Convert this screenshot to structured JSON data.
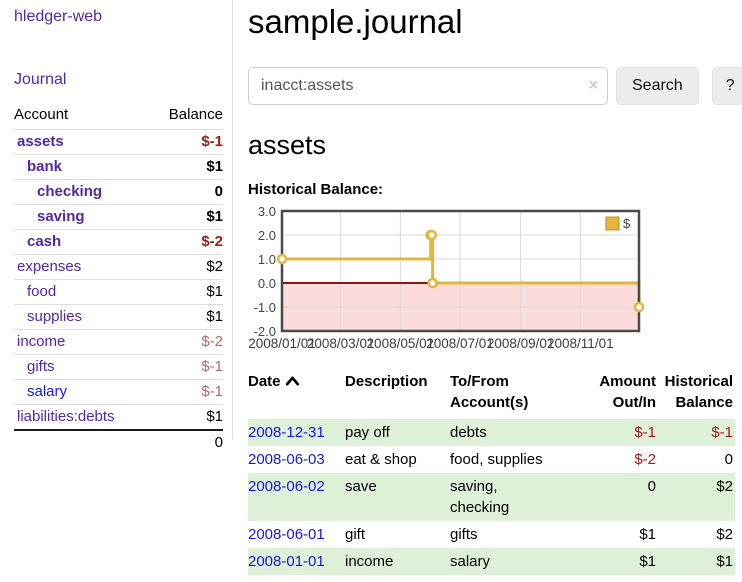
{
  "colors": {
    "link_purple": "#5229a3",
    "link_blue": "#1717d8",
    "neg_dark_red": "#9c1a18",
    "neg_light_red": "#b26a6a",
    "row_stripe_green": "#dff0d8",
    "chart_line_gold": "#e5b43a",
    "chart_negative_fill": "#fcdcda",
    "chart_zero_line": "#8c1512",
    "chart_grid": "#d9d9d9",
    "chart_border": "#4a4a4a"
  },
  "sidebar": {
    "app_title": "hledger-web",
    "nav_journal": "Journal",
    "accounts_table": {
      "headers": {
        "account": "Account",
        "balance": "Balance"
      },
      "rows": [
        {
          "name": "assets",
          "indent": 0,
          "bold": true,
          "balance": "$-1",
          "balance_class": "negb"
        },
        {
          "name": "bank",
          "indent": 1,
          "bold": true,
          "balance": "$1",
          "balance_class": "posb"
        },
        {
          "name": "checking",
          "indent": 2,
          "bold": true,
          "balance": "0",
          "balance_class": "posb"
        },
        {
          "name": "saving",
          "indent": 2,
          "bold": true,
          "balance": "$1",
          "balance_class": "posb"
        },
        {
          "name": "cash",
          "indent": 1,
          "bold": true,
          "balance": "$-2",
          "balance_class": "negb"
        },
        {
          "name": "expenses",
          "indent": 0,
          "bold": false,
          "balance": "$2",
          "balance_class": "pos"
        },
        {
          "name": "food",
          "indent": 1,
          "bold": false,
          "balance": "$1",
          "balance_class": "pos"
        },
        {
          "name": "supplies",
          "indent": 1,
          "bold": false,
          "balance": "$1",
          "balance_class": "pos"
        },
        {
          "name": "income",
          "indent": 0,
          "bold": false,
          "balance": "$-2",
          "balance_class": "negl"
        },
        {
          "name": "gifts",
          "indent": 1,
          "bold": false,
          "balance": "$-1",
          "balance_class": "negl"
        },
        {
          "name": "salary",
          "indent": 1,
          "bold": false,
          "balance": "$-1",
          "balance_class": "negl",
          "blue": true
        },
        {
          "name": "liabilities:debts",
          "indent": 0,
          "bold": false,
          "balance": "$1",
          "balance_class": "pos"
        }
      ],
      "total": "0"
    }
  },
  "main": {
    "title": "sample.journal",
    "search": {
      "value": "inacct:assets",
      "clear_icon": "×",
      "button_label": "Search",
      "help_label": "?"
    },
    "account_heading": "assets",
    "section_label": "Historical Balance:"
  },
  "chart_data": {
    "type": "line",
    "step": true,
    "title": "Historical Balance",
    "series": [
      {
        "name": "$",
        "color": "#e5b43a",
        "points": [
          [
            "2008-01-01",
            1
          ],
          [
            "2008-06-01",
            2
          ],
          [
            "2008-06-02",
            2
          ],
          [
            "2008-06-03",
            0
          ],
          [
            "2008-12-31",
            -1
          ]
        ]
      }
    ],
    "xlim": [
      "2008-01-01",
      "2008-12-31"
    ],
    "ylim": [
      -2,
      3
    ],
    "yticks": [
      3.0,
      2.0,
      1.0,
      0.0,
      -1.0,
      -2.0
    ],
    "xticks": [
      "2008/01/01",
      "2008/03/01",
      "2008/05/01",
      "2008/07/01",
      "2008/09/01",
      "2008/11/01"
    ],
    "legend": {
      "position": "top-right",
      "label": "$"
    },
    "negative_region": {
      "below": 0,
      "fill": "#fcdcda",
      "line_color": "#8c1512"
    },
    "grid": true
  },
  "register": {
    "headers": [
      {
        "lines": [
          "Date"
        ],
        "sort": "asc",
        "align": "left"
      },
      {
        "lines": [
          "Description"
        ],
        "align": "left"
      },
      {
        "lines": [
          "To/From",
          "Account(s)"
        ],
        "align": "left"
      },
      {
        "lines": [
          "Amount",
          "Out/In"
        ],
        "align": "right"
      },
      {
        "lines": [
          "Historical",
          "Balance"
        ],
        "align": "right"
      }
    ],
    "rows": [
      {
        "date": "2008-12-31",
        "description": "pay off",
        "accounts": [
          "debts"
        ],
        "amount": "$-1",
        "amount_neg": true,
        "balance": "$-1",
        "balance_neg": true
      },
      {
        "date": "2008-06-03",
        "description": "eat & shop",
        "accounts": [
          "food",
          "supplies"
        ],
        "amount": "$-2",
        "amount_neg": true,
        "balance": "0",
        "balance_neg": false
      },
      {
        "date": "2008-06-02",
        "description": "save",
        "accounts": [
          "saving",
          "checking"
        ],
        "amount": "0",
        "amount_neg": false,
        "balance": "$2",
        "balance_neg": false
      },
      {
        "date": "2008-06-01",
        "description": "gift",
        "accounts": [
          "gifts"
        ],
        "amount": "$1",
        "amount_neg": false,
        "balance": "$2",
        "balance_neg": false
      },
      {
        "date": "2008-01-01",
        "description": "income",
        "accounts": [
          "salary"
        ],
        "amount": "$1",
        "amount_neg": false,
        "balance": "$1",
        "balance_neg": false
      }
    ]
  }
}
